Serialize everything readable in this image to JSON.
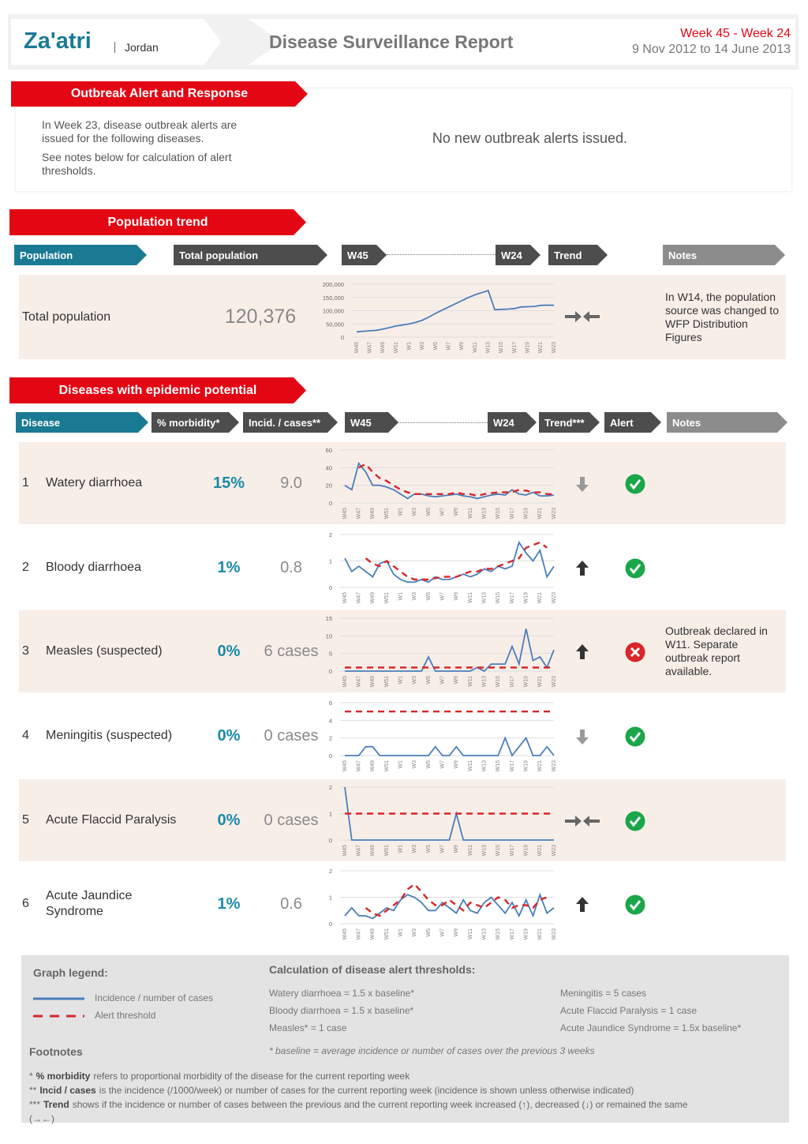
{
  "header": {
    "site": "Za'atri",
    "country": "Jordan",
    "title": "Disease Surveillance Report",
    "weeks": "Week 45 - Week 24",
    "dates": "9 Nov 2012 to 14 June 2013"
  },
  "outbreak": {
    "heading": "Outbreak Alert and Response",
    "intro": "In Week 23, disease outbreak alerts are issued for the following diseases.",
    "note": "See notes below for calculation of alert thresholds.",
    "message": "No new outbreak alerts issued."
  },
  "population": {
    "heading": "Population trend",
    "columns": [
      "Population",
      "Total population",
      "W45",
      "W24",
      "Trend",
      "Notes"
    ],
    "row": {
      "label": "Total population",
      "value": "120,376",
      "trend": "same",
      "notes": "In W14, the population source was changed to WFP Distribution Figures"
    }
  },
  "diseases": {
    "heading": "Diseases with epidemic potential",
    "columns": [
      "Disease",
      "% morbidity*",
      "Incid. / cases**",
      "W45",
      "W24",
      "Trend***",
      "Alert",
      "Notes"
    ],
    "rows": [
      {
        "number": "1",
        "name": "Watery diarrhoea",
        "morbidity": "15%",
        "incidence": "9.0",
        "trend": "down",
        "alert": false
      },
      {
        "number": "2",
        "name": "Bloody diarrhoea",
        "morbidity": "1%",
        "incidence": "0.8",
        "trend": "up",
        "alert": false
      },
      {
        "number": "3",
        "name": "Measles (suspected)",
        "morbidity": "0%",
        "incidence": "6 cases",
        "trend": "up",
        "alert": true,
        "notes": "Outbreak declared in W11. Separate outbreak report available."
      },
      {
        "number": "4",
        "name": "Meningitis (suspected)",
        "morbidity": "0%",
        "incidence": "0 cases",
        "trend": "down",
        "alert": false
      },
      {
        "number": "5",
        "name": "Acute Flaccid Paralysis",
        "morbidity": "0%",
        "incidence": "0 cases",
        "trend": "same",
        "alert": false
      },
      {
        "number": "6",
        "name": "Acute Jaundice Syndrome",
        "morbidity": "1%",
        "incidence": "0.6",
        "trend": "up",
        "alert": false
      }
    ]
  },
  "chart_data": [
    {
      "type": "line",
      "grid": true,
      "categories": [
        "W45",
        null,
        "W47",
        null,
        "W49",
        null,
        "W51",
        null,
        "W1",
        null,
        "W3",
        null,
        "W5",
        null,
        "W7",
        null,
        "W9",
        null,
        "W11",
        null,
        "W13",
        null,
        "W15",
        null,
        "W17",
        null,
        "W19",
        null,
        "W21",
        null,
        "W23"
      ],
      "ylim": [
        0,
        200000
      ],
      "yticks": [
        {
          "value": 200000,
          "label": "200,000"
        },
        {
          "value": 150000,
          "label": "150,000"
        },
        {
          "value": 100000,
          "label": "100,000"
        },
        {
          "value": 50000,
          "label": "50,000"
        },
        0
      ],
      "series": [
        {
          "color": "#4a7ebb",
          "values": [
            20000,
            22000,
            24000,
            26000,
            30000,
            36000,
            42000,
            46000,
            50000,
            56000,
            64000,
            76000,
            90000,
            102000,
            114000,
            126000,
            138000,
            150000,
            160000,
            168000,
            176000,
            104000,
            105000,
            106000,
            108000,
            114000,
            115000,
            116000,
            120000,
            121000,
            120376
          ]
        }
      ]
    },
    {
      "type": "line",
      "grid": true,
      "categories": [
        "W45",
        null,
        "W47",
        null,
        "W49",
        null,
        "W51",
        null,
        "W1",
        null,
        "W3",
        null,
        "W5",
        null,
        "W7",
        null,
        "W9",
        null,
        "W11",
        null,
        "W13",
        null,
        "W15",
        null,
        "W17",
        null,
        "W19",
        null,
        "W21",
        null,
        "W23"
      ],
      "ylim": [
        0,
        60
      ],
      "yticks": [
        0,
        20,
        40,
        60
      ],
      "series": [
        {
          "color": "#4a7ebb",
          "values": [
            20,
            15,
            45,
            35,
            20,
            20,
            18,
            15,
            10,
            5,
            10,
            10,
            8,
            7,
            8,
            9,
            10,
            8,
            7,
            5,
            7,
            9,
            10,
            9,
            15,
            10,
            9,
            12,
            8,
            8,
            9
          ]
        },
        {
          "color": "#d9262b",
          "dashed": true,
          "values": [
            null,
            null,
            40,
            44,
            35,
            28,
            25,
            20,
            15,
            12,
            10,
            10,
            10,
            10,
            10,
            10,
            12,
            10,
            10,
            8,
            10,
            11,
            12,
            12,
            12,
            15,
            14,
            12,
            12,
            10,
            10
          ]
        }
      ]
    },
    {
      "type": "line",
      "grid": true,
      "categories": [
        "W45",
        null,
        "W47",
        null,
        "W49",
        null,
        "W51",
        null,
        "W1",
        null,
        "W3",
        null,
        "W5",
        null,
        "W7",
        null,
        "W9",
        null,
        "W11",
        null,
        "W13",
        null,
        "W15",
        null,
        "W17",
        null,
        "W19",
        null,
        "W21",
        null,
        "W23"
      ],
      "ylim": [
        0,
        2
      ],
      "yticks": [
        0,
        1,
        2
      ],
      "series": [
        {
          "color": "#4a7ebb",
          "values": [
            1.1,
            0.6,
            0.8,
            0.6,
            0.4,
            0.9,
            1.0,
            0.5,
            0.3,
            0.2,
            0.2,
            0.3,
            0.2,
            0.4,
            0.3,
            0.3,
            0.4,
            0.5,
            0.4,
            0.5,
            0.7,
            0.6,
            0.8,
            0.7,
            0.8,
            1.7,
            1.3,
            1.0,
            1.4,
            0.4,
            0.8
          ]
        },
        {
          "color": "#d9262b",
          "dashed": true,
          "values": [
            null,
            null,
            null,
            1.1,
            0.9,
            0.8,
            1.0,
            0.8,
            0.6,
            0.4,
            0.3,
            0.3,
            0.3,
            0.35,
            0.4,
            0.4,
            0.4,
            0.5,
            0.6,
            0.6,
            0.7,
            0.7,
            0.8,
            0.9,
            1.0,
            1.1,
            1.5,
            1.6,
            1.7,
            1.5,
            null
          ]
        }
      ]
    },
    {
      "type": "line",
      "grid": true,
      "categories": [
        "W45",
        null,
        "W47",
        null,
        "W49",
        null,
        "W51",
        null,
        "W1",
        null,
        "W3",
        null,
        "W5",
        null,
        "W7",
        null,
        "W9",
        null,
        "W11",
        null,
        "W13",
        null,
        "W15",
        null,
        "W17",
        null,
        "W19",
        null,
        "W21",
        null,
        "W23"
      ],
      "ylim": [
        0,
        15
      ],
      "yticks": [
        0,
        5,
        10,
        15
      ],
      "series": [
        {
          "color": "#4a7ebb",
          "values": [
            0,
            0,
            0,
            0,
            0,
            0,
            0,
            0,
            0,
            0,
            0,
            0,
            4,
            0,
            0,
            0,
            0,
            0,
            0,
            1,
            0,
            2,
            2,
            2,
            7,
            2,
            12,
            3,
            4,
            1,
            6
          ]
        },
        {
          "color": "#d9262b",
          "dashed": true,
          "values": [
            1,
            1,
            1,
            1,
            1,
            1,
            1,
            1,
            1,
            1,
            1,
            1,
            1,
            1,
            1,
            1,
            1,
            1,
            1,
            1,
            1,
            1,
            1,
            1,
            1,
            1,
            1,
            1,
            1,
            1,
            1
          ]
        }
      ]
    },
    {
      "type": "line",
      "grid": true,
      "categories": [
        "W45",
        null,
        "W47",
        null,
        "W49",
        null,
        "W51",
        null,
        "W1",
        null,
        "W3",
        null,
        "W5",
        null,
        "W7",
        null,
        "W9",
        null,
        "W11",
        null,
        "W13",
        null,
        "W15",
        null,
        "W17",
        null,
        "W19",
        null,
        "W21",
        null,
        "W23"
      ],
      "ylim": [
        0,
        6
      ],
      "yticks": [
        0,
        2,
        4,
        6
      ],
      "series": [
        {
          "color": "#4a7ebb",
          "values": [
            0,
            0,
            0,
            1,
            1,
            0,
            0,
            0,
            0,
            0,
            0,
            0,
            0,
            1,
            0,
            0,
            1,
            0,
            0,
            0,
            0,
            0,
            0,
            2,
            0,
            1,
            2,
            0,
            0,
            1,
            0
          ]
        },
        {
          "color": "#d9262b",
          "dashed": true,
          "values": [
            5,
            5,
            5,
            5,
            5,
            5,
            5,
            5,
            5,
            5,
            5,
            5,
            5,
            5,
            5,
            5,
            5,
            5,
            5,
            5,
            5,
            5,
            5,
            5,
            5,
            5,
            5,
            5,
            5,
            5,
            5
          ]
        }
      ]
    },
    {
      "type": "line",
      "grid": true,
      "categories": [
        "W45",
        null,
        "W47",
        null,
        "W49",
        null,
        "W51",
        null,
        "W1",
        null,
        "W3",
        null,
        "W5",
        null,
        "W7",
        null,
        "W9",
        null,
        "W11",
        null,
        "W13",
        null,
        "W15",
        null,
        "W17",
        null,
        "W19",
        null,
        "W21",
        null,
        "W23"
      ],
      "ylim": [
        0,
        2
      ],
      "yticks": [
        0,
        1,
        2
      ],
      "series": [
        {
          "color": "#4a7ebb",
          "values": [
            2,
            0,
            0,
            0,
            0,
            0,
            0,
            0,
            0,
            0,
            0,
            0,
            0,
            0,
            0,
            0,
            1,
            0,
            0,
            0,
            0,
            0,
            0,
            0,
            0,
            0,
            0,
            0,
            0,
            0,
            0
          ]
        },
        {
          "color": "#d9262b",
          "dashed": true,
          "values": [
            1,
            1,
            1,
            1,
            1,
            1,
            1,
            1,
            1,
            1,
            1,
            1,
            1,
            1,
            1,
            1,
            1,
            1,
            1,
            1,
            1,
            1,
            1,
            1,
            1,
            1,
            1,
            1,
            1,
            1,
            1
          ]
        }
      ]
    },
    {
      "type": "line",
      "grid": true,
      "categories": [
        "W45",
        null,
        "W47",
        null,
        "W49",
        null,
        "W51",
        null,
        "W1",
        null,
        "W3",
        null,
        "W5",
        null,
        "W7",
        null,
        "W9",
        null,
        "W11",
        null,
        "W13",
        null,
        "W15",
        null,
        "W17",
        null,
        "W19",
        null,
        "W21",
        null,
        "W23"
      ],
      "ylim": [
        0,
        2
      ],
      "yticks": [
        0,
        1,
        2
      ],
      "series": [
        {
          "color": "#4a7ebb",
          "values": [
            0.3,
            0.6,
            0.3,
            0.3,
            0.2,
            0.4,
            0.6,
            0.5,
            0.9,
            1.1,
            1.0,
            0.8,
            0.5,
            0.5,
            0.8,
            0.6,
            0.4,
            0.9,
            0.5,
            0.4,
            0.8,
            1.0,
            0.7,
            0.4,
            0.8,
            0.3,
            0.9,
            0.3,
            1.1,
            0.4,
            0.6
          ]
        },
        {
          "color": "#d9262b",
          "dashed": true,
          "values": [
            null,
            null,
            null,
            0.6,
            0.4,
            0.3,
            0.5,
            0.7,
            0.9,
            1.3,
            1.5,
            1.2,
            0.9,
            0.7,
            0.7,
            0.9,
            0.7,
            0.5,
            0.8,
            0.7,
            0.6,
            0.8,
            1.0,
            0.9,
            0.6,
            0.7,
            0.7,
            0.6,
            0.9,
            1.0,
            null
          ]
        }
      ]
    }
  ],
  "legend": {
    "heading": "Graph legend:",
    "items": [
      {
        "label": "Incidence / number of cases",
        "color": "#4a7ebb",
        "dashed": false
      },
      {
        "label": "Alert threshold",
        "color": "#d9262b",
        "dashed": true
      }
    ]
  },
  "thresholds": {
    "heading": "Calculation of disease alert thresholds:",
    "items": [
      "Watery diarrhoea = 1.5 x baseline*",
      "Bloody diarrhoea = 1.5 x baseline*",
      "Measles* = 1 case",
      "Meningitis = 5 cases",
      "Acute Flaccid Paralysis = 1 case",
      "Acute Jaundice Syndrome = 1.5x baseline*"
    ],
    "baseline": "* baseline = average incidence or number of cases over the previous 3 weeks"
  },
  "footnotes": {
    "heading": "Footnotes",
    "items": [
      {
        "marker": "*",
        "term": "% morbidity",
        "text": "refers to proportional morbidity of the disease for the current reporting week"
      },
      {
        "marker": "**",
        "term": "Incid / cases",
        "text": "is the incidence (/1000/week) or number of cases for the current reporting week (incidence is shown unless otherwise indicated)"
      },
      {
        "marker": "***",
        "term": "Trend",
        "text": "shows if the incidence or number of cases between the previous and the current reporting week increased (↑), decreased (↓) or remained the same (→←)"
      }
    ]
  }
}
